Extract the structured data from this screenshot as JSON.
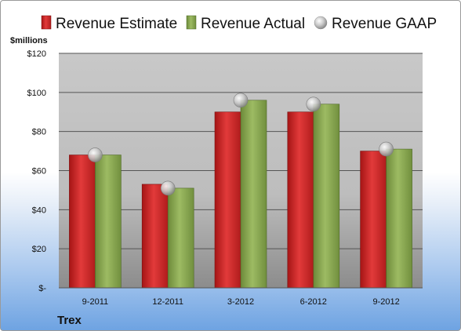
{
  "chart_data": {
    "type": "bar",
    "categories": [
      "9-2011",
      "12-2011",
      "3-2012",
      "6-2012",
      "9-2012"
    ],
    "series": [
      {
        "name": "Revenue Estimate",
        "values": [
          68,
          53,
          90,
          90,
          70
        ],
        "color": "#d42a2a",
        "kind": "bar"
      },
      {
        "name": "Revenue Actual",
        "values": [
          68,
          51,
          96,
          94,
          71
        ],
        "color": "#8dab55",
        "kind": "bar"
      },
      {
        "name": "Revenue GAAP",
        "values": [
          68,
          51,
          96,
          94,
          71
        ],
        "color": "#b8b8b8",
        "kind": "marker"
      }
    ],
    "ylabel": "$millions",
    "yticks": [
      0,
      20,
      40,
      60,
      80,
      100,
      120
    ],
    "ytick_labels": [
      "$-",
      "$20",
      "$40",
      "$60",
      "$80",
      "$100",
      "$120"
    ],
    "ylim": [
      0,
      120
    ],
    "grid": true,
    "legend_position": "top",
    "company": "Trex"
  }
}
